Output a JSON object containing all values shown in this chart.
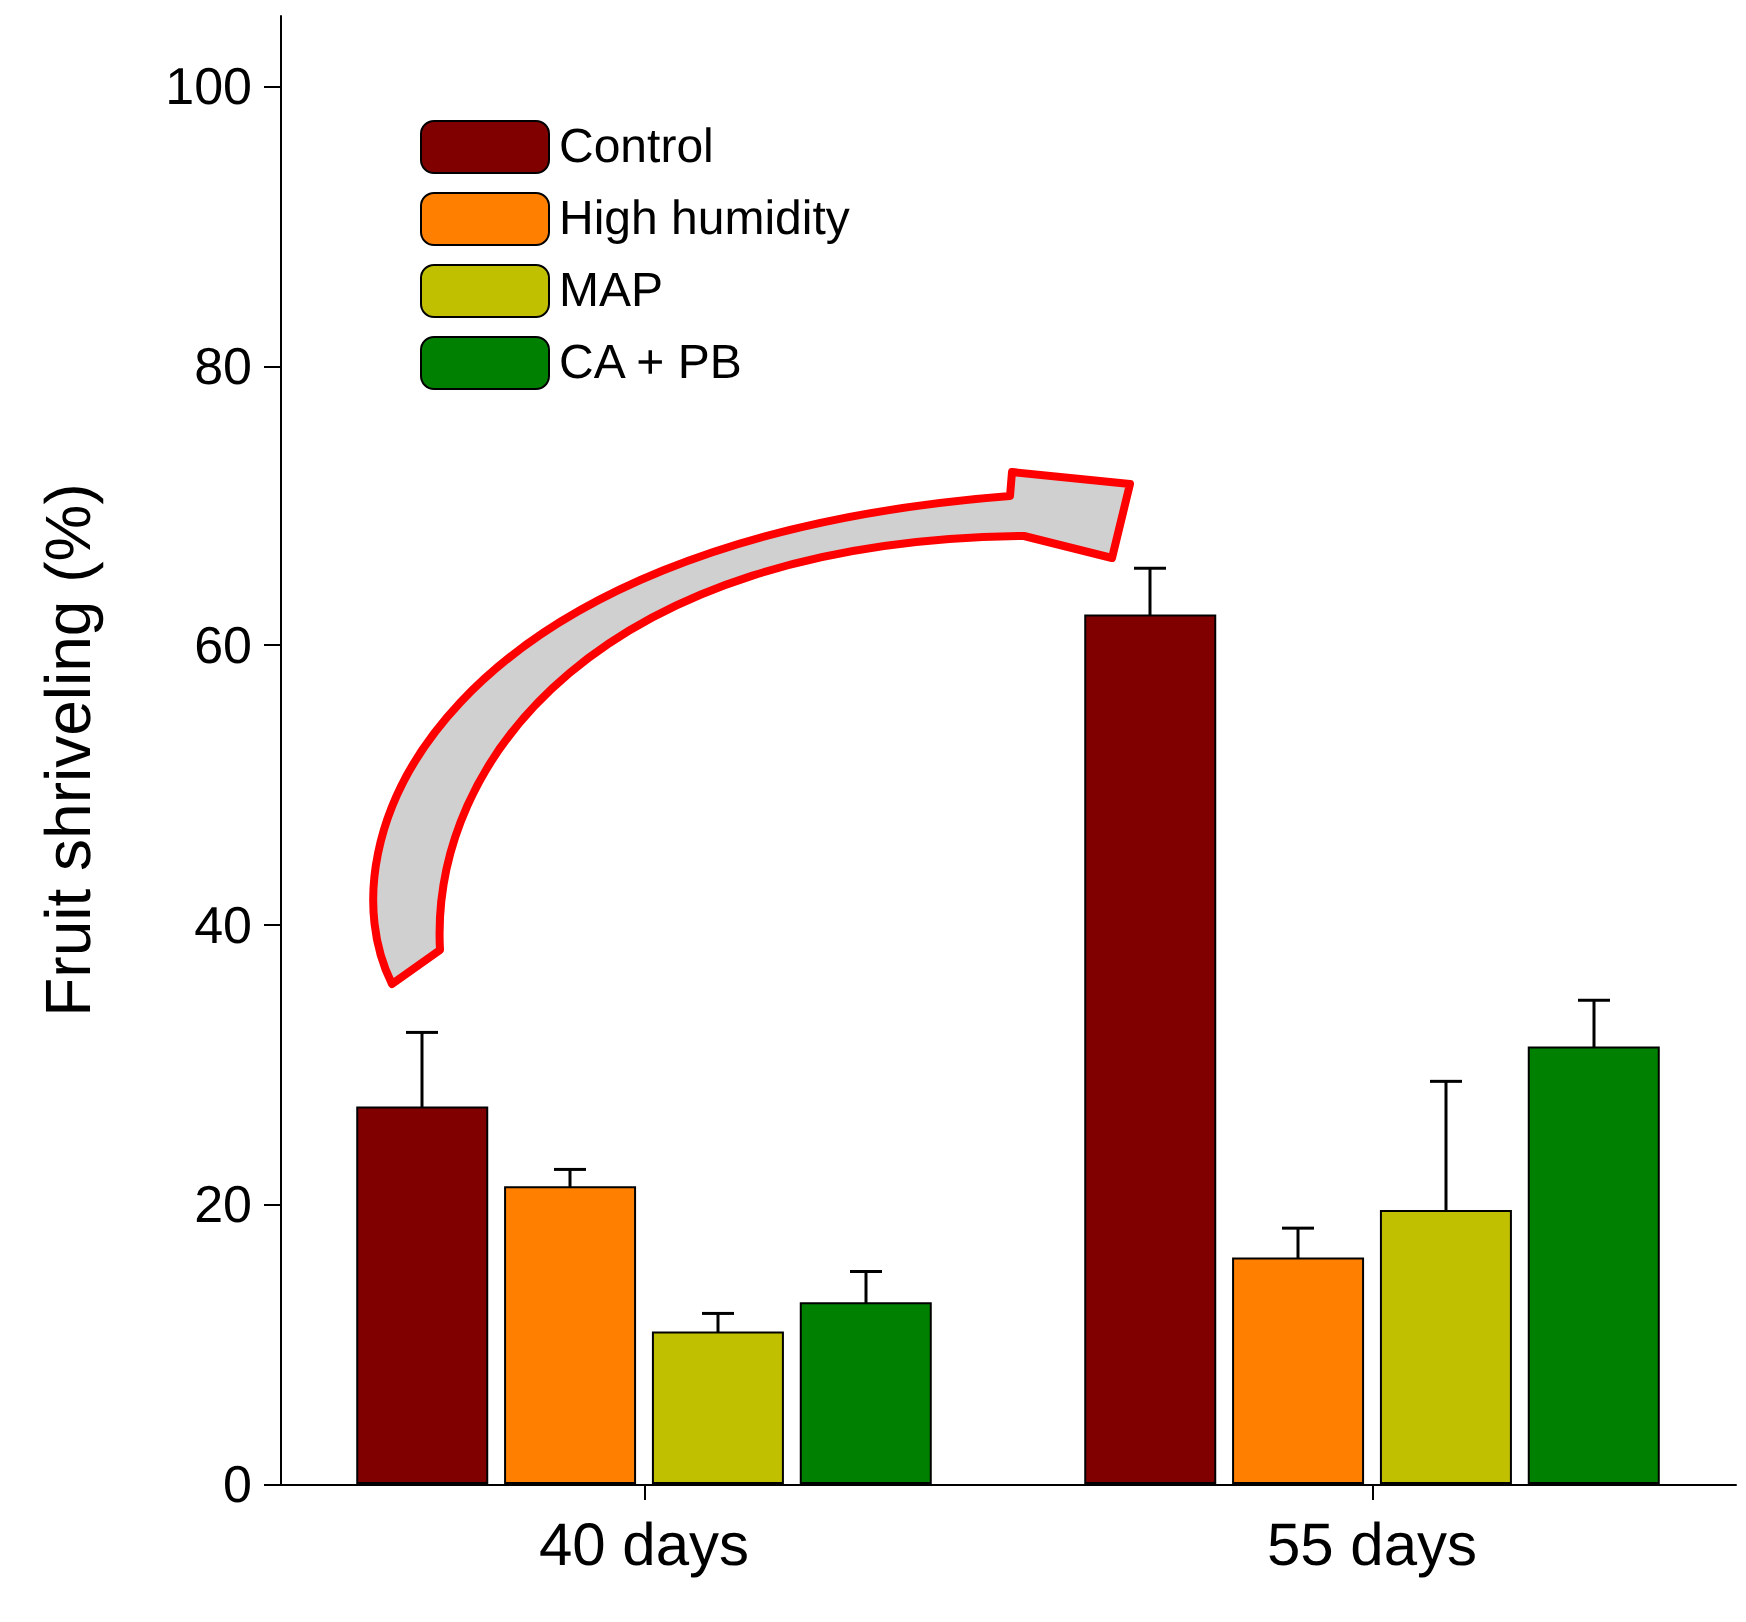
{
  "chart_data": {
    "type": "bar",
    "ylabel": "Fruit shriveling (%)",
    "categories": [
      "40 days",
      "55 days"
    ],
    "series": [
      {
        "name": "Control",
        "color": "#800000",
        "values": [
          27,
          62.2
        ],
        "errors": [
          5.3,
          3.3
        ]
      },
      {
        "name": "High humidity",
        "color": "#ff8000",
        "values": [
          21.3,
          16.2
        ],
        "errors": [
          1.2,
          2.1
        ]
      },
      {
        "name": "MAP",
        "color": "#c0c000",
        "values": [
          10.9,
          19.6
        ],
        "errors": [
          1.3,
          9.2
        ]
      },
      {
        "name": "CA + PB",
        "color": "#008000",
        "values": [
          13,
          31.3
        ],
        "errors": [
          2.2,
          3.3
        ]
      }
    ],
    "ylim": [
      0,
      105
    ],
    "yticks": [
      0,
      20,
      40,
      60,
      80,
      100
    ],
    "grid": false,
    "legend": "top left"
  }
}
